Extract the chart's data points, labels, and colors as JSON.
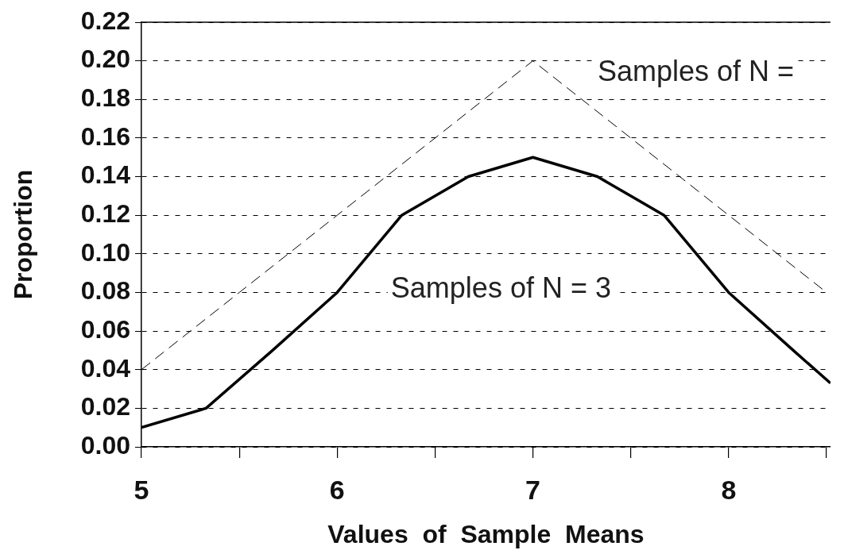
{
  "chart_data": {
    "type": "line",
    "xlabel": "Values  of  Sample  Means",
    "ylabel": "Proportion",
    "xlim": [
      5,
      8.52
    ],
    "ylim": [
      0,
      0.22
    ],
    "xticks": [
      5,
      {
        "value": 5.5,
        "label": null
      },
      6,
      {
        "value": 6.5,
        "label": null
      },
      7,
      {
        "value": 7.5,
        "label": null
      },
      8,
      {
        "value": 8.5,
        "label": null
      }
    ],
    "yticks": [
      {
        "value": 0,
        "label": "0.00"
      },
      {
        "value": 0.02,
        "label": "0.02"
      },
      {
        "value": 0.04,
        "label": "0.04"
      },
      {
        "value": 0.06,
        "label": "0.06"
      },
      {
        "value": 0.08,
        "label": "0.08"
      },
      {
        "value": 0.1,
        "label": "0.10"
      },
      {
        "value": 0.12,
        "label": "0.12"
      },
      {
        "value": 0.14,
        "label": "0.14"
      },
      {
        "value": 0.16,
        "label": "0.16"
      },
      {
        "value": 0.18,
        "label": "0.18"
      },
      {
        "value": 0.2,
        "label": "0.20"
      },
      {
        "value": 0.22,
        "label": "0.22"
      }
    ],
    "grid": "y",
    "marker": "none",
    "legend": false,
    "series": [
      {
        "color": "#000000",
        "line_style": "dashed",
        "x": [
          5,
          5.5,
          6,
          6.5,
          7,
          7.5,
          8,
          8.5
        ],
        "values": [
          0.04,
          0.08,
          0.12,
          0.16,
          0.2,
          0.16,
          0.12,
          0.08
        ]
      },
      {
        "color": "#000000",
        "line_style": "solid",
        "x": [
          5,
          5.33,
          5.67,
          6,
          6.33,
          6.67,
          7,
          7.33,
          7.67,
          8,
          8.33,
          8.52
        ],
        "values": [
          0.01,
          0.02,
          0.05,
          0.08,
          0.12,
          0.14,
          0.15,
          0.14,
          0.12,
          0.08,
          0.05,
          0.033
        ]
      }
    ],
    "annotations": [
      "Samples of N = 3",
      "Samples of N ="
    ]
  }
}
